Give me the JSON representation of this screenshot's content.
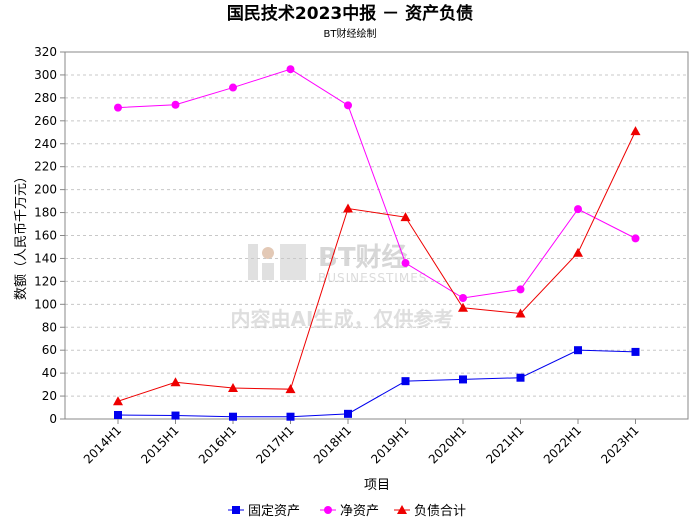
{
  "chart_data": {
    "type": "line",
    "title": "国民技术2023中报 － 资产负债",
    "subtitle": "BT财经绘制",
    "xlabel": "项目",
    "ylabel": "数额（人民币千万元）",
    "categories": [
      "2014H1",
      "2015H1",
      "2016H1",
      "2017H1",
      "2018H1",
      "2019H1",
      "2020H1",
      "2021H1",
      "2022H1",
      "2023H1"
    ],
    "ylim": [
      0,
      320
    ],
    "yticks": [
      "0",
      "20",
      "40",
      "60",
      "80",
      "100",
      "120",
      "140",
      "160",
      "180",
      "200",
      "220",
      "240",
      "260",
      "280",
      "300",
      "320"
    ],
    "grid": true,
    "legend_position": "bottom-center",
    "series": [
      {
        "name": "固定资产",
        "color": "#0000ee",
        "marker": "square",
        "values": [
          3.5,
          3.0,
          2.0,
          2.0,
          4.5,
          33.0,
          34.5,
          36.0,
          60.0,
          58.5
        ]
      },
      {
        "name": "净资产",
        "color": "#ff00ff",
        "marker": "circle",
        "values": [
          271.5,
          274.0,
          289.0,
          305.0,
          273.5,
          136.0,
          105.5,
          113.0,
          183.0,
          157.5
        ]
      },
      {
        "name": "负债合计",
        "color": "#ee0000",
        "marker": "triangle",
        "values": [
          15.5,
          32.0,
          27.0,
          26.0,
          183.5,
          176.0,
          97.0,
          92.0,
          145.0,
          251.0
        ]
      }
    ]
  },
  "watermark": {
    "brand": "BT财经",
    "brand_en": "BUSINESSTIMES",
    "notice": "内容由AI生成，仅供参考"
  }
}
